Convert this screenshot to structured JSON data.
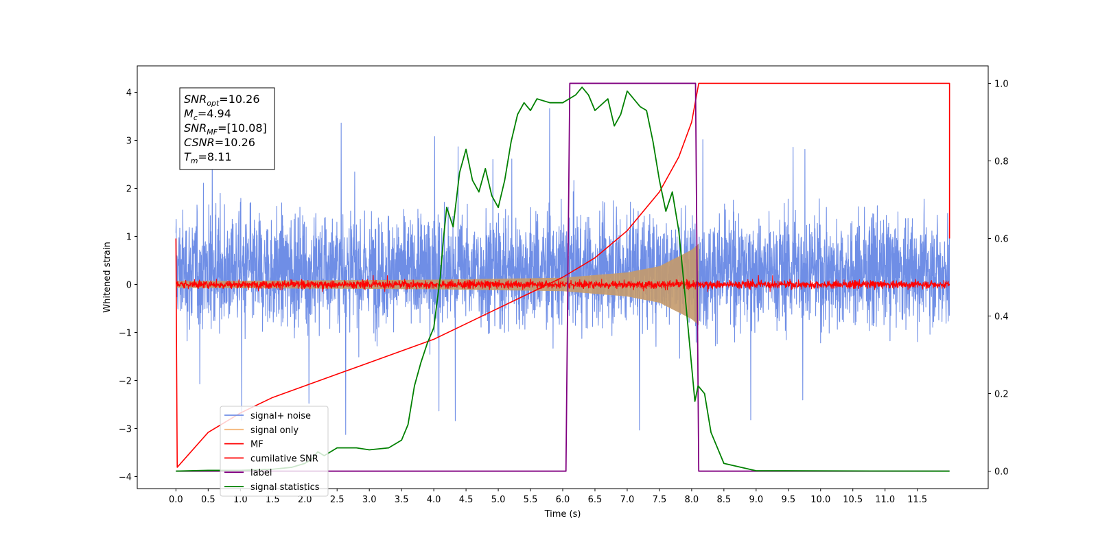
{
  "chart_data": {
    "type": "line",
    "xlabel": "Time (s)",
    "ylabel": "Whitened strain",
    "xlim": [
      -0.6,
      12.6
    ],
    "ylim": [
      -4.25,
      4.55
    ],
    "y2lim": [
      -0.045,
      1.045
    ],
    "xticks": [
      0.0,
      0.5,
      1.0,
      1.5,
      2.0,
      2.5,
      3.0,
      3.5,
      4.0,
      4.5,
      5.0,
      5.5,
      6.0,
      6.5,
      7.0,
      7.5,
      8.0,
      8.5,
      9.0,
      9.5,
      10.0,
      10.5,
      11.0,
      11.5
    ],
    "xtick_labels": [
      "0.0",
      "0.5",
      "1.0",
      "1.5",
      "2.0",
      "2.5",
      "3.0",
      "3.5",
      "4.0",
      "4.5",
      "5.0",
      "5.5",
      "6.0",
      "6.5",
      "7.0",
      "7.5",
      "8.0",
      "8.5",
      "9.0",
      "9.5",
      "10.0",
      "10.5",
      "11.0",
      "11.5"
    ],
    "yticks": [
      -4,
      -3,
      -2,
      -1,
      0,
      1,
      2,
      3,
      4
    ],
    "ytick_labels": [
      "−4",
      "−3",
      "−2",
      "−1",
      "0",
      "1",
      "2",
      "3",
      "4"
    ],
    "y2ticks": [
      0.0,
      0.2,
      0.4,
      0.6,
      0.8,
      1.0
    ],
    "y2tick_labels": [
      "0.0",
      "0.2",
      "0.4",
      "0.6",
      "0.8",
      "1.0"
    ],
    "annotation": [
      {
        "base": "SNR",
        "sub": "opt",
        "rest": "=10.26"
      },
      {
        "base": "M",
        "sub": "c",
        "rest": "=4.94"
      },
      {
        "base": "SNR",
        "sub": "MF",
        "rest": "=[10.08]"
      },
      {
        "base": "CSNR",
        "sub": "",
        "rest": "=10.26"
      },
      {
        "base": "T",
        "sub": "m",
        "rest": "=8.11"
      }
    ],
    "legend_position": "lower-left",
    "series": [
      {
        "name": "signal+ noise",
        "color": "#6f8ee6",
        "axis": "left",
        "kind": "noise",
        "x_range": [
          0.0,
          12.0
        ],
        "center": 0.3,
        "typical_range": [
          -1.3,
          2.0
        ],
        "extremes": [
          -3.9,
          4.2
        ]
      },
      {
        "name": "signal only",
        "color": "#f5b77a",
        "axis": "left",
        "kind": "chirp-envelope",
        "x_range": [
          0.0,
          8.11
        ],
        "envelope": [
          [
            0.0,
            0.07
          ],
          [
            4.0,
            0.1
          ],
          [
            6.0,
            0.14
          ],
          [
            7.0,
            0.25
          ],
          [
            7.5,
            0.38
          ],
          [
            8.0,
            0.72
          ],
          [
            8.11,
            0.85
          ]
        ]
      },
      {
        "name": "MF",
        "color": "#ff0000",
        "axis": "left",
        "kind": "noise",
        "x_range": [
          0.0,
          12.0
        ],
        "center": 0.0,
        "typical_range": [
          -0.12,
          0.15
        ],
        "extremes": [
          -0.15,
          0.35
        ]
      },
      {
        "name": "cumilative SNR",
        "color": "#ff0000",
        "axis": "right",
        "kind": "line",
        "x": [
          0.0,
          0.02,
          0.5,
          1.0,
          1.5,
          2.0,
          2.5,
          3.0,
          3.5,
          4.0,
          4.5,
          5.0,
          5.5,
          6.0,
          6.5,
          7.0,
          7.5,
          7.8,
          8.0,
          8.11,
          12.0,
          12.0
        ],
        "y": [
          0.6,
          0.01,
          0.1,
          0.15,
          0.19,
          0.22,
          0.25,
          0.28,
          0.31,
          0.34,
          0.38,
          0.42,
          0.46,
          0.5,
          0.55,
          0.62,
          0.72,
          0.81,
          0.9,
          1.0,
          1.0,
          0.6
        ]
      },
      {
        "name": "label",
        "color": "#800080",
        "axis": "right",
        "kind": "line",
        "x": [
          0.0,
          6.05,
          6.11,
          8.06,
          8.11,
          12.0
        ],
        "y": [
          0.0,
          0.0,
          1.0,
          1.0,
          0.0,
          0.0
        ]
      },
      {
        "name": "signal statistics",
        "color": "#008000",
        "axis": "right",
        "kind": "line",
        "x": [
          0.0,
          0.5,
          1.0,
          1.5,
          1.8,
          2.0,
          2.1,
          2.2,
          2.3,
          2.5,
          2.8,
          3.0,
          3.3,
          3.5,
          3.6,
          3.7,
          3.8,
          3.9,
          4.0,
          4.1,
          4.15,
          4.2,
          4.3,
          4.4,
          4.5,
          4.6,
          4.7,
          4.8,
          4.9,
          5.0,
          5.1,
          5.2,
          5.3,
          5.4,
          5.5,
          5.6,
          5.8,
          6.0,
          6.2,
          6.3,
          6.4,
          6.5,
          6.7,
          6.8,
          6.9,
          7.0,
          7.2,
          7.3,
          7.4,
          7.5,
          7.6,
          7.7,
          7.8,
          7.9,
          8.0,
          8.05,
          8.1,
          8.2,
          8.3,
          8.5,
          9.0,
          12.0
        ],
        "y": [
          0.0,
          0.002,
          0.002,
          0.005,
          0.01,
          0.02,
          0.03,
          0.05,
          0.04,
          0.06,
          0.06,
          0.055,
          0.06,
          0.08,
          0.12,
          0.22,
          0.28,
          0.33,
          0.37,
          0.5,
          0.6,
          0.68,
          0.63,
          0.77,
          0.83,
          0.75,
          0.72,
          0.78,
          0.71,
          0.68,
          0.75,
          0.85,
          0.92,
          0.95,
          0.93,
          0.96,
          0.95,
          0.95,
          0.97,
          0.99,
          0.97,
          0.93,
          0.96,
          0.89,
          0.92,
          0.98,
          0.94,
          0.93,
          0.85,
          0.75,
          0.67,
          0.72,
          0.62,
          0.45,
          0.27,
          0.18,
          0.22,
          0.2,
          0.1,
          0.02,
          0.001,
          0.0
        ]
      }
    ]
  }
}
